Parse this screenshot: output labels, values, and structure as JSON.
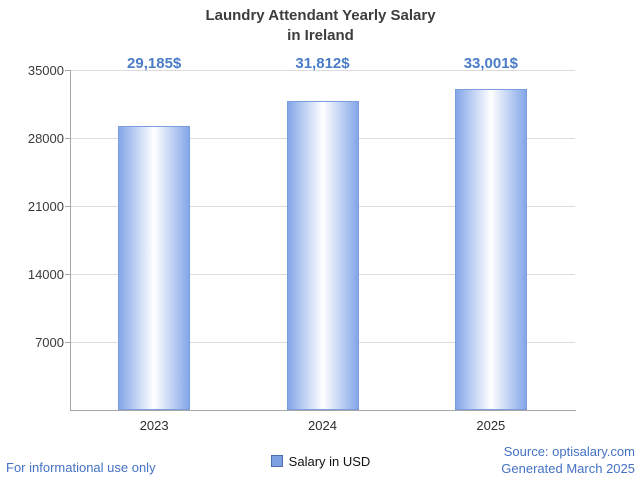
{
  "title": {
    "line1": "Laundry Attendant Yearly Salary",
    "line2": "in Ireland"
  },
  "chart_data": {
    "type": "bar",
    "title": "Laundry Attendant Yearly Salary",
    "subtitle": "in Ireland",
    "categories": [
      "2023",
      "2024",
      "2025"
    ],
    "values": [
      29185,
      31812,
      33001
    ],
    "value_labels": [
      "29,185$",
      "31,812$",
      "33,001$"
    ],
    "xlabel": "",
    "ylabel": "",
    "ylim": [
      0,
      35000
    ],
    "yticks": [
      7000,
      14000,
      21000,
      28000,
      35000
    ],
    "grid": true,
    "legend": {
      "label": "Salary in USD",
      "position": "bottom"
    }
  },
  "colors": {
    "value_label": "#4a7cc7",
    "bar_edge": "#84a6e8",
    "bar_center": "#ffffff",
    "bar_border": "#7b9ddd",
    "legend_marker_fill": "#7da0e0",
    "legend_marker_border": "#4a6fae",
    "footer_accent": "#4472c4"
  },
  "footer": {
    "disclaimer": "For informational use only",
    "source": "Source: optisalary.com",
    "generated": "Generated March 2025"
  }
}
